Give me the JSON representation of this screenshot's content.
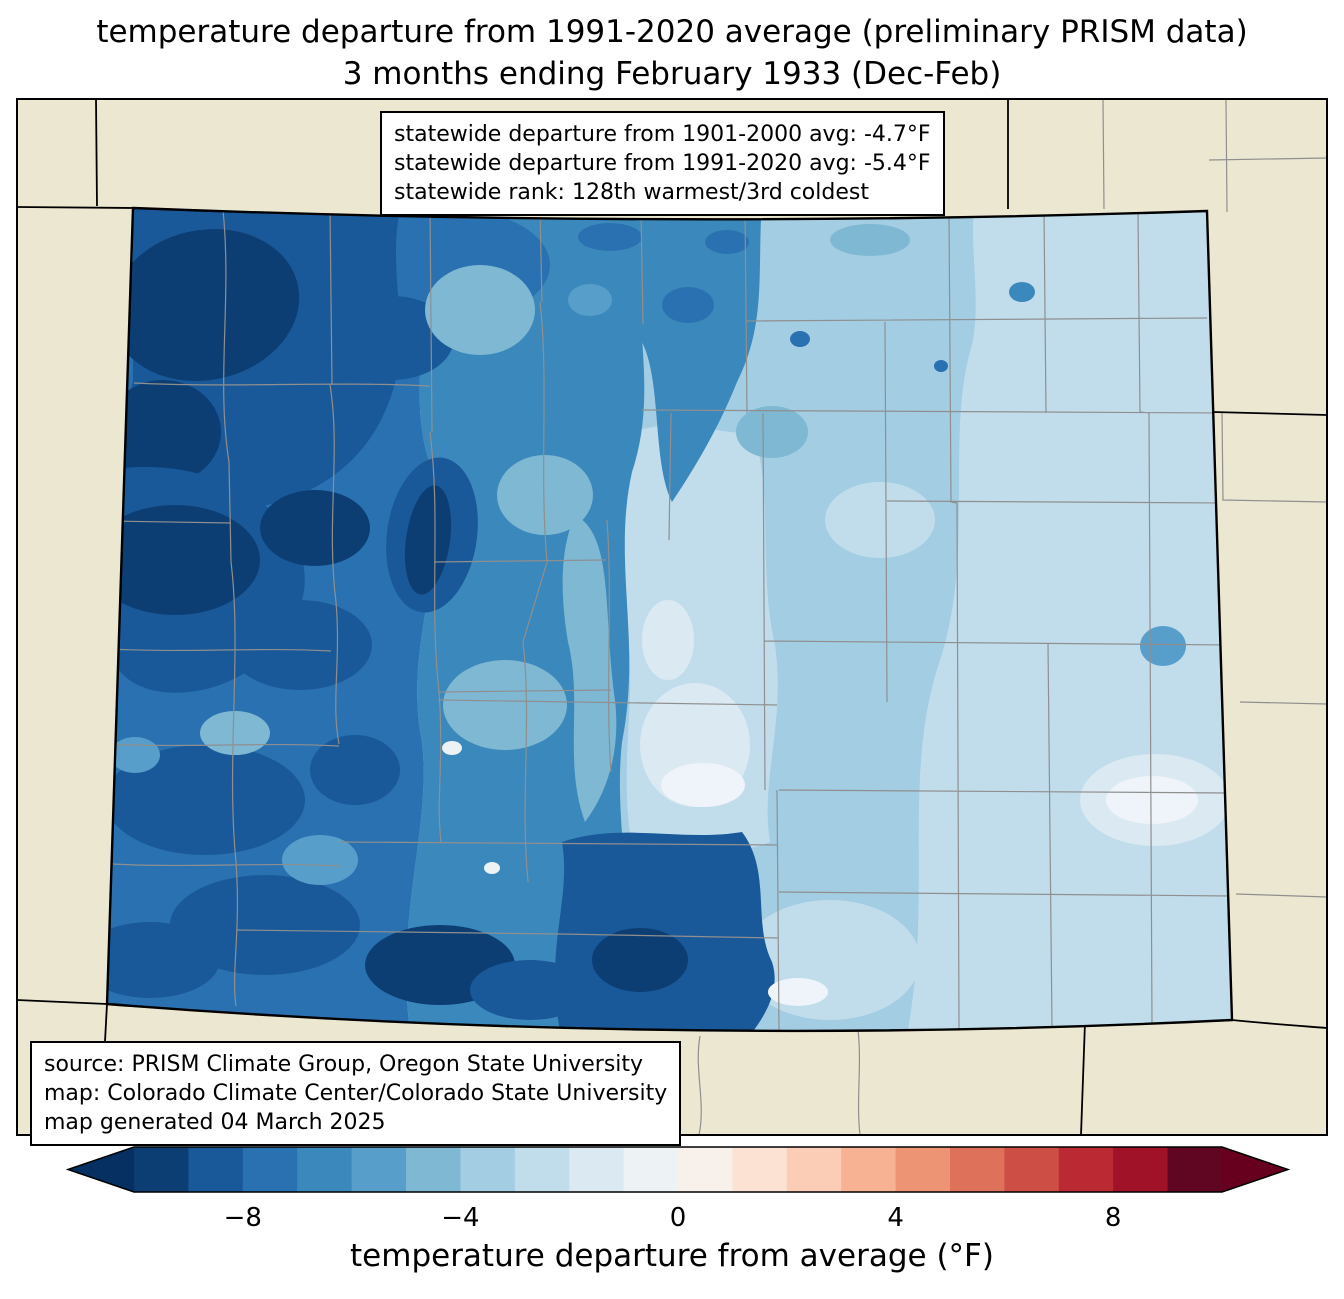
{
  "title": {
    "line1": "temperature departure from 1991-2020 average (preliminary PRISM data)",
    "line2": "3 months ending February 1933 (Dec-Feb)"
  },
  "stats_box": {
    "lines": [
      "statewide departure from 1901-2000 avg: -4.7°F",
      "statewide departure from 1991-2020 avg: -5.4°F",
      "statewide rank: 128th warmest/3rd coldest"
    ]
  },
  "source_box": {
    "lines": [
      "source: PRISM Climate Group, Oregon State University",
      "map: Colorado Climate Center/Colorado State University",
      "map generated 04 March 2025"
    ]
  },
  "colors": {
    "land_background": "#ece7d1",
    "county_line": "#8f8f8f",
    "state_line": "#000000",
    "box_background": "#ffffff"
  },
  "chart_data": {
    "type": "choropleth-map",
    "region": "Colorado, USA (county boundaries shown; neighboring states in beige)",
    "variable": "temperature departure from average (°F)",
    "period": "Dec-Feb ending February 1933",
    "statistics": {
      "statewide_departure_from_1901_2000_avg_F": -4.7,
      "statewide_departure_from_1991_2020_avg_F": -5.4,
      "statewide_rank": "128th warmest/3rd coldest"
    },
    "value_pattern": {
      "northwest_and_west_mountains_F": "-8 to -10 (darkest blues)",
      "central_mountains_F": "-5 to -7 (mid blues)",
      "central_valleys_F": "-1 to -3 (pale pockets, near-white spots)",
      "eastern_plains_F": "-1 to -3 (palest blues)",
      "note": "entire state below average; no positive (red) areas appear on the map"
    },
    "colorbar": {
      "label": "temperature departure from average (°F)",
      "orientation": "horizontal",
      "range": [
        -10,
        10
      ],
      "ticks": [
        -8,
        -4,
        0,
        4,
        8
      ],
      "tick_labels": [
        "−8",
        "−4",
        "0",
        "4",
        "8"
      ],
      "extend": "both",
      "under_color": "#053061",
      "over_color": "#67001f",
      "segment_colors": [
        "#0c3e74",
        "#1a5999",
        "#2a71b2",
        "#3b88bc",
        "#579fca",
        "#7eb8d3",
        "#a2cde3",
        "#c1ddec",
        "#dbe9f2",
        "#edf2f5",
        "#f8f0eb",
        "#fce2d3",
        "#fbcdb6",
        "#f6b293",
        "#ed9475",
        "#dd715a",
        "#cd4e45",
        "#bb2a33",
        "#9f1228",
        "#600622"
      ]
    }
  }
}
